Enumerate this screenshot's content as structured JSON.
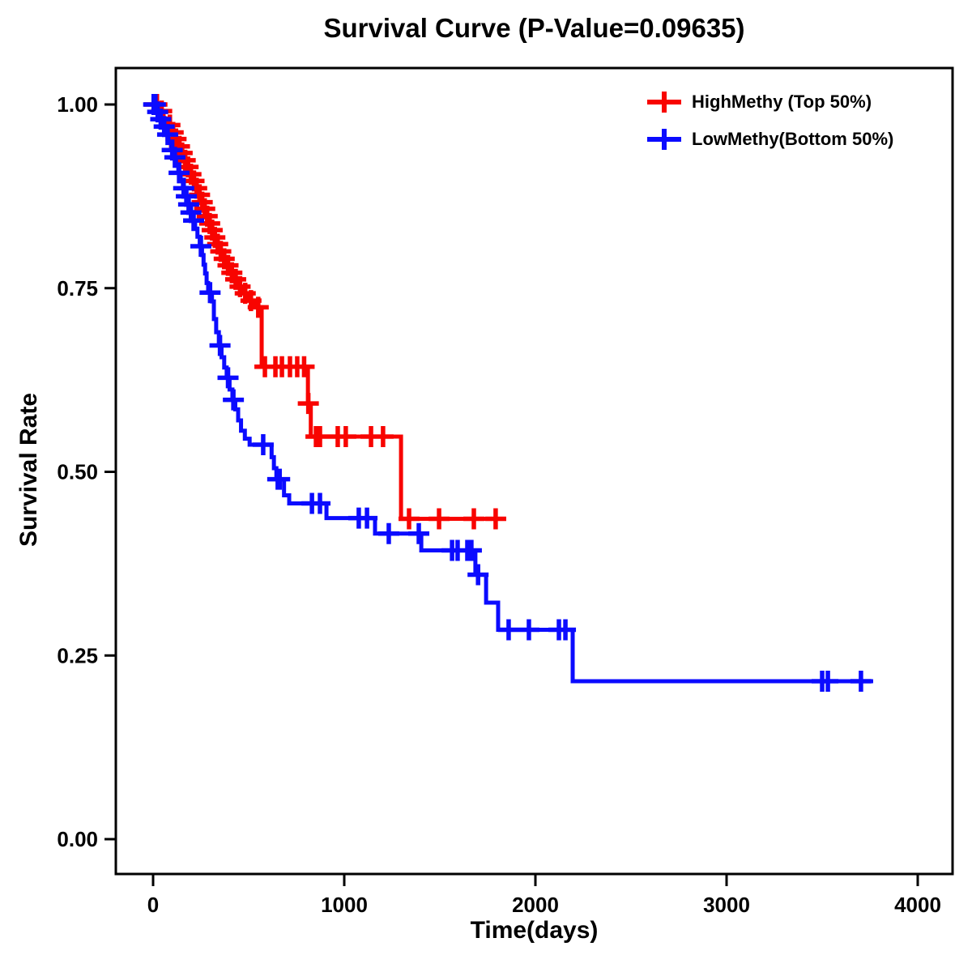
{
  "chart_data": {
    "type": "line",
    "subtype": "kaplan-meier-step",
    "title": "Survival Curve (P-Value=0.09635)",
    "xlabel": "Time(days)",
    "ylabel": "Survival Rate",
    "p_value": "0.09635",
    "xlim": [
      -195,
      4182
    ],
    "ylim": [
      -0.05,
      1.05
    ],
    "xticks": [
      {
        "v": 0,
        "label": "0"
      },
      {
        "v": 1000,
        "label": "1000"
      },
      {
        "v": 2000,
        "label": "2000"
      },
      {
        "v": 3000,
        "label": "3000"
      },
      {
        "v": 4000,
        "label": "4000"
      }
    ],
    "yticks": [
      {
        "v": 1.0,
        "label": "1.00"
      },
      {
        "v": 0.75,
        "label": "0.75"
      },
      {
        "v": 0.5,
        "label": "0.50"
      },
      {
        "v": 0.25,
        "label": "0.25"
      },
      {
        "v": 0.0,
        "label": "0.00"
      }
    ],
    "grid": false,
    "legend_position": "top-right",
    "series": [
      {
        "name": "HighMethy (Top 50%)",
        "color": "#f80400",
        "end_time": 1847,
        "steps": [
          [
            0,
            1.0
          ],
          [
            30,
            0.991
          ],
          [
            55,
            0.981
          ],
          [
            75,
            0.972
          ],
          [
            95,
            0.962
          ],
          [
            112,
            0.953
          ],
          [
            128,
            0.943
          ],
          [
            145,
            0.934
          ],
          [
            160,
            0.924
          ],
          [
            175,
            0.915
          ],
          [
            190,
            0.905
          ],
          [
            205,
            0.896
          ],
          [
            220,
            0.886
          ],
          [
            235,
            0.877
          ],
          [
            250,
            0.867
          ],
          [
            263,
            0.858
          ],
          [
            276,
            0.848
          ],
          [
            289,
            0.838
          ],
          [
            302,
            0.829
          ],
          [
            315,
            0.819
          ],
          [
            330,
            0.81
          ],
          [
            345,
            0.8
          ],
          [
            362,
            0.79
          ],
          [
            380,
            0.781
          ],
          [
            400,
            0.771
          ],
          [
            420,
            0.762
          ],
          [
            440,
            0.752
          ],
          [
            465,
            0.743
          ],
          [
            495,
            0.733
          ],
          [
            530,
            0.724
          ],
          [
            568,
            0.643
          ],
          [
            810,
            0.593
          ],
          [
            825,
            0.548
          ],
          [
            1297,
            0.436
          ]
        ],
        "censors": [
          [
            8,
            1.0
          ],
          [
            20,
            1.0
          ],
          [
            45,
            0.991
          ],
          [
            88,
            0.972
          ],
          [
            105,
            0.962
          ],
          [
            120,
            0.953
          ],
          [
            138,
            0.943
          ],
          [
            152,
            0.934
          ],
          [
            168,
            0.924
          ],
          [
            183,
            0.915
          ],
          [
            198,
            0.905
          ],
          [
            214,
            0.896
          ],
          [
            228,
            0.886
          ],
          [
            243,
            0.877
          ],
          [
            257,
            0.867
          ],
          [
            270,
            0.858
          ],
          [
            283,
            0.848
          ],
          [
            296,
            0.838
          ],
          [
            309,
            0.829
          ],
          [
            323,
            0.819
          ],
          [
            338,
            0.81
          ],
          [
            354,
            0.8
          ],
          [
            372,
            0.79
          ],
          [
            392,
            0.781
          ],
          [
            412,
            0.771
          ],
          [
            432,
            0.762
          ],
          [
            455,
            0.752
          ],
          [
            482,
            0.743
          ],
          [
            512,
            0.733
          ],
          [
            550,
            0.724
          ],
          [
            585,
            0.643
          ],
          [
            640,
            0.643
          ],
          [
            674,
            0.643
          ],
          [
            716,
            0.643
          ],
          [
            754,
            0.643
          ],
          [
            790,
            0.643
          ],
          [
            812,
            0.593
          ],
          [
            852,
            0.548
          ],
          [
            873,
            0.548
          ],
          [
            966,
            0.548
          ],
          [
            1008,
            0.548
          ],
          [
            1140,
            0.548
          ],
          [
            1203,
            0.548
          ],
          [
            1339,
            0.436
          ],
          [
            1496,
            0.436
          ],
          [
            1678,
            0.436
          ],
          [
            1792,
            0.436
          ]
        ]
      },
      {
        "name": "LowMethy(Bottom 50%)",
        "color": "#0b0bff",
        "end_time": 3767,
        "steps": [
          [
            0,
            1.0
          ],
          [
            18,
            0.99
          ],
          [
            35,
            0.98
          ],
          [
            50,
            0.97
          ],
          [
            65,
            0.959
          ],
          [
            80,
            0.949
          ],
          [
            95,
            0.938
          ],
          [
            108,
            0.928
          ],
          [
            120,
            0.917
          ],
          [
            132,
            0.907
          ],
          [
            144,
            0.896
          ],
          [
            156,
            0.886
          ],
          [
            168,
            0.875
          ],
          [
            180,
            0.864
          ],
          [
            192,
            0.853
          ],
          [
            204,
            0.842
          ],
          [
            220,
            0.831
          ],
          [
            232,
            0.82
          ],
          [
            244,
            0.807
          ],
          [
            256,
            0.795
          ],
          [
            264,
            0.782
          ],
          [
            272,
            0.77
          ],
          [
            280,
            0.757
          ],
          [
            288,
            0.744
          ],
          [
            308,
            0.732
          ],
          [
            318,
            0.708
          ],
          [
            330,
            0.69
          ],
          [
            344,
            0.672
          ],
          [
            358,
            0.656
          ],
          [
            372,
            0.642
          ],
          [
            385,
            0.628
          ],
          [
            400,
            0.612
          ],
          [
            415,
            0.598
          ],
          [
            430,
            0.585
          ],
          [
            445,
            0.57
          ],
          [
            460,
            0.556
          ],
          [
            480,
            0.545
          ],
          [
            505,
            0.537
          ],
          [
            620,
            0.52
          ],
          [
            632,
            0.505
          ],
          [
            645,
            0.49
          ],
          [
            685,
            0.468
          ],
          [
            712,
            0.457
          ],
          [
            907,
            0.437
          ],
          [
            1161,
            0.416
          ],
          [
            1403,
            0.393
          ],
          [
            1686,
            0.36
          ],
          [
            1742,
            0.322
          ],
          [
            1805,
            0.285
          ],
          [
            2195,
            0.215
          ]
        ],
        "censors": [
          [
            3,
            1.0
          ],
          [
            12,
            1.0
          ],
          [
            24,
            0.99
          ],
          [
            40,
            0.98
          ],
          [
            58,
            0.97
          ],
          [
            76,
            0.959
          ],
          [
            100,
            0.938
          ],
          [
            114,
            0.928
          ],
          [
            136,
            0.907
          ],
          [
            160,
            0.886
          ],
          [
            174,
            0.875
          ],
          [
            186,
            0.864
          ],
          [
            198,
            0.853
          ],
          [
            212,
            0.842
          ],
          [
            250,
            0.807
          ],
          [
            298,
            0.744
          ],
          [
            350,
            0.672
          ],
          [
            392,
            0.628
          ],
          [
            420,
            0.598
          ],
          [
            576,
            0.537
          ],
          [
            652,
            0.49
          ],
          [
            662,
            0.49
          ],
          [
            831,
            0.457
          ],
          [
            873,
            0.457
          ],
          [
            1076,
            0.437
          ],
          [
            1119,
            0.437
          ],
          [
            1233,
            0.416
          ],
          [
            1390,
            0.416
          ],
          [
            1564,
            0.393
          ],
          [
            1593,
            0.393
          ],
          [
            1644,
            0.393
          ],
          [
            1665,
            0.393
          ],
          [
            1700,
            0.36
          ],
          [
            1860,
            0.285
          ],
          [
            1966,
            0.285
          ],
          [
            2123,
            0.285
          ],
          [
            2157,
            0.285
          ],
          [
            3500,
            0.215
          ],
          [
            3530,
            0.215
          ],
          [
            3703,
            0.215
          ]
        ]
      }
    ]
  }
}
